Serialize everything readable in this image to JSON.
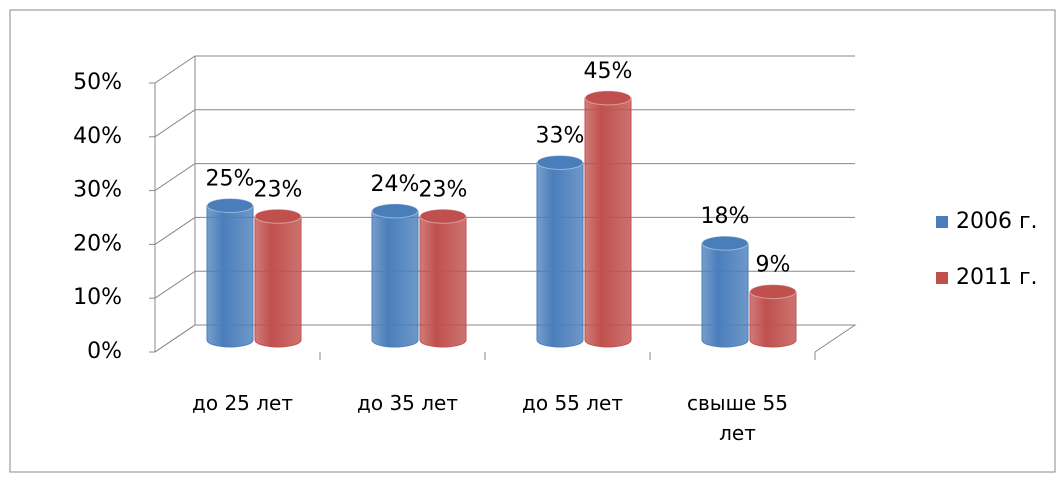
{
  "chart_data": {
    "type": "bar3d",
    "categories": [
      "до 25 лет",
      "до 35 лет",
      "до 55 лет",
      "свыше 55 лет"
    ],
    "series": [
      {
        "name": "2006 г.",
        "color": "#4a7ebb",
        "values": [
          25,
          24,
          33,
          18
        ],
        "value_labels": [
          "25%",
          "24%",
          "33%",
          "18%"
        ]
      },
      {
        "name": "2011 г.",
        "color": "#c0504d",
        "values": [
          23,
          23,
          45,
          9
        ],
        "value_labels": [
          "23%",
          "23%",
          "45%",
          "9%"
        ]
      }
    ],
    "ylim": [
      0,
      50
    ],
    "yticks": [
      {
        "value": 0,
        "label": "0%"
      },
      {
        "value": 10,
        "label": "10%"
      },
      {
        "value": 20,
        "label": "20%"
      },
      {
        "value": 30,
        "label": "30%"
      },
      {
        "value": 40,
        "label": "40%"
      },
      {
        "value": 50,
        "label": "50%"
      }
    ],
    "grid": true,
    "legend": "right"
  }
}
